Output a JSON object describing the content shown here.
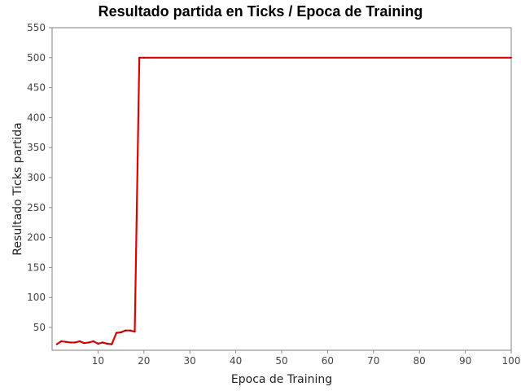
{
  "chart_data": {
    "type": "line",
    "title": "Resultado partida en Ticks / Epoca de Training",
    "xlabel": "Epoca de Training",
    "ylabel": "Resultado Ticks partida",
    "xlim": [
      0,
      100
    ],
    "ylim": [
      12,
      550
    ],
    "x_ticks": [
      10,
      20,
      30,
      40,
      50,
      60,
      70,
      80,
      90,
      100
    ],
    "y_ticks": [
      50,
      100,
      150,
      200,
      250,
      300,
      350,
      400,
      450,
      500,
      550
    ],
    "grid": false,
    "series": [
      {
        "color": "#dd0000",
        "x": [
          1,
          2,
          3,
          4,
          5,
          6,
          7,
          8,
          9,
          10,
          11,
          12,
          13,
          14,
          15,
          16,
          17,
          18,
          19,
          20,
          100
        ],
        "y": [
          22,
          27,
          26,
          25,
          25,
          27,
          24,
          25,
          27,
          23,
          25,
          23,
          22,
          41,
          42,
          45,
          45,
          43,
          500,
          500,
          500
        ]
      }
    ]
  }
}
